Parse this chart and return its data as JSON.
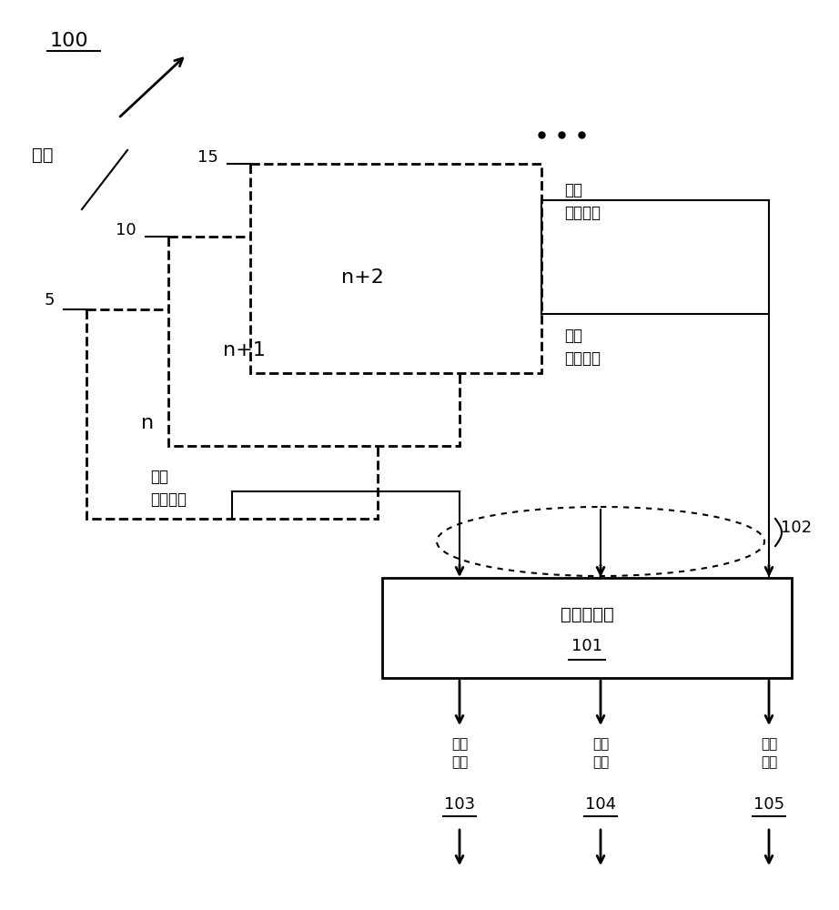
{
  "bg_color": "#ffffff",
  "text_color": "#000000",
  "title_label": "100",
  "time_label": "时间",
  "label_5": "5",
  "label_10": "10",
  "label_15": "15",
  "label_102": "102",
  "label_101": "101",
  "label_103": "103",
  "label_104": "104",
  "label_105": "105",
  "frame_n": "n",
  "frame_n1": "n+1",
  "frame_n2": "n+2",
  "video_input_1": "视频\n数据输入",
  "video_input_2": "视频\n数据输入",
  "video_input_3": "视频\n数据输入",
  "encoder_label": "并行编码器",
  "stream_1": "编码\n的流",
  "stream_2": "编码\n的流",
  "stream_3": "编码\n的流"
}
